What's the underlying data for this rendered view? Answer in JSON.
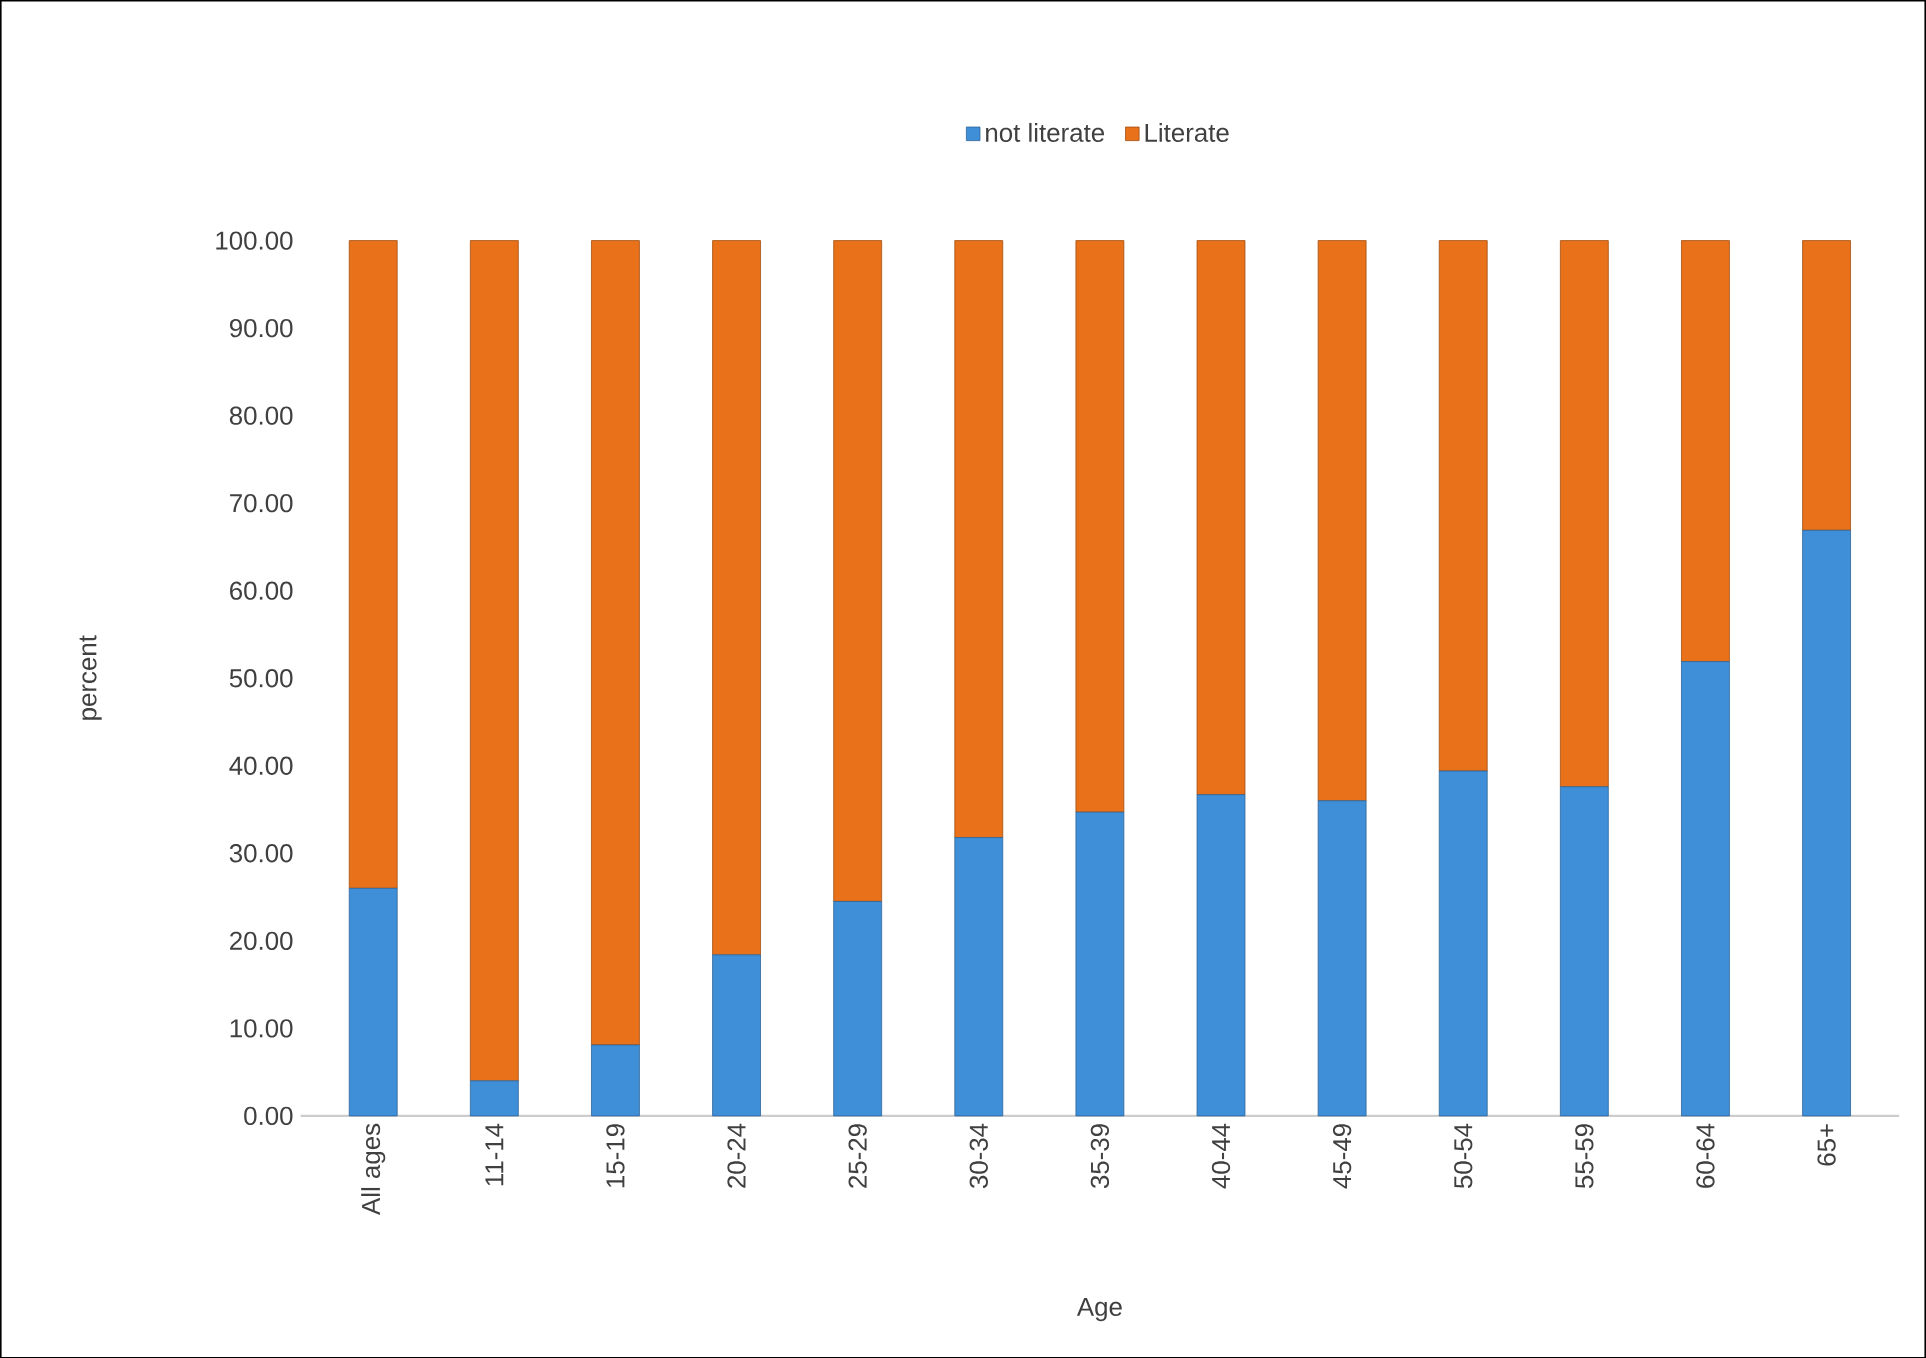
{
  "chart_data": {
    "type": "bar",
    "stacked": true,
    "xlabel": "Age",
    "ylabel": "percent",
    "categories": [
      "All ages",
      "11-14",
      "15-19",
      "20-24",
      "25-29",
      "30-34",
      "35-39",
      "40-44",
      "45-49",
      "50-54",
      "55-59",
      "60-64",
      "65+"
    ],
    "series": [
      {
        "name": "not  literate",
        "color": "#3f8fd8",
        "values": [
          26.0,
          4.0,
          8.1,
          18.4,
          24.5,
          31.8,
          34.7,
          36.7,
          36.0,
          39.4,
          37.6,
          51.9,
          66.9
        ]
      },
      {
        "name": "Literate",
        "color": "#e8711a",
        "values": [
          74.0,
          96.0,
          91.9,
          81.6,
          75.5,
          68.2,
          65.3,
          63.3,
          64.0,
          60.6,
          62.4,
          48.1,
          33.1
        ]
      }
    ],
    "ylim": [
      0,
      100
    ],
    "yticks": [
      {
        "value": 0,
        "label": "0.00"
      },
      {
        "value": 10,
        "label": "10.00"
      },
      {
        "value": 20,
        "label": "20.00"
      },
      {
        "value": 30,
        "label": "30.00"
      },
      {
        "value": 40,
        "label": "40.00"
      },
      {
        "value": 50,
        "label": "50.00"
      },
      {
        "value": 60,
        "label": "60.00"
      },
      {
        "value": 70,
        "label": "70.00"
      },
      {
        "value": 80,
        "label": "80.00"
      },
      {
        "value": 90,
        "label": "90.00"
      },
      {
        "value": 100,
        "label": "100.00"
      }
    ],
    "legend": "top",
    "grid": false
  }
}
